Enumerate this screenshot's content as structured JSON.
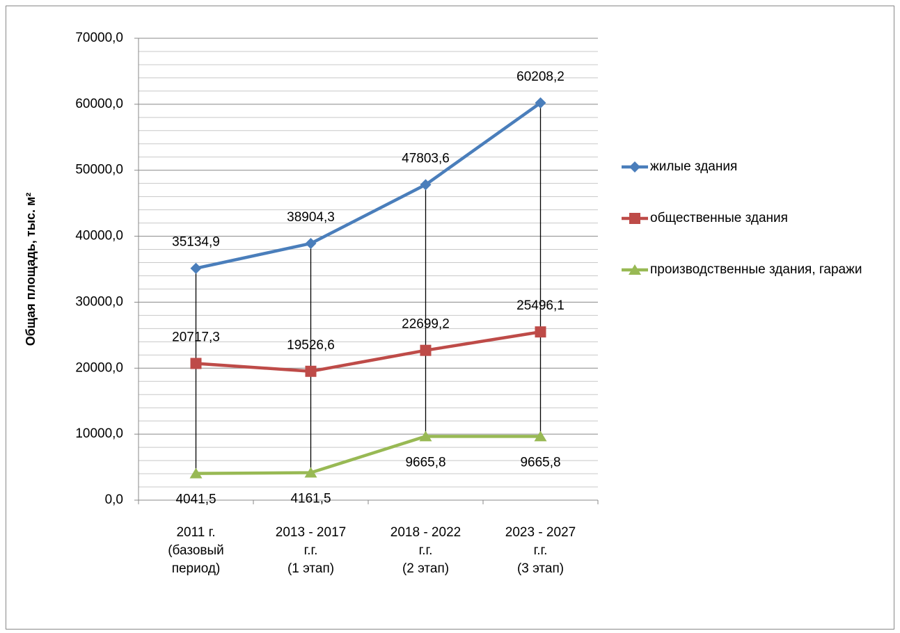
{
  "chart_data": {
    "type": "line",
    "y_label": "Общая площадь, тыс. м²",
    "categories": [
      "2011 г.\n(базовый\nпериод)",
      "2013 - 2017\nг.г.\n(1 этап)",
      "2018 - 2022\nг.г.\n(2 этап)",
      "2023 - 2027\nг.г.\n(3 этап)"
    ],
    "series": [
      {
        "name": "жилые здания",
        "color": "#4a7ebb",
        "marker": "diamond",
        "label_side": "above",
        "values": [
          35134.9,
          38904.3,
          47803.6,
          60208.2
        ],
        "value_labels": [
          "35134,9",
          "38904,3",
          "47803,6",
          "60208,2"
        ]
      },
      {
        "name": "общественные здания",
        "color": "#be4b48",
        "marker": "square",
        "label_side": "above",
        "values": [
          20717.3,
          19526.6,
          22699.2,
          25496.1
        ],
        "value_labels": [
          "20717,3",
          "19526,6",
          "22699,2",
          "25496,1"
        ]
      },
      {
        "name": "производственные здания, гаражи",
        "color": "#98b954",
        "marker": "triangle",
        "label_side": "below",
        "values": [
          4041.5,
          4161.5,
          9665.8,
          9665.8
        ],
        "value_labels": [
          "4041,5",
          "4161,5",
          "9665,8",
          "9665,8"
        ]
      }
    ],
    "ylim": [
      0,
      70000
    ],
    "yticks": [
      {
        "value": 0,
        "label": "0,0"
      },
      {
        "value": 10000,
        "label": "10000,0"
      },
      {
        "value": 20000,
        "label": "20000,0"
      },
      {
        "value": 30000,
        "label": "30000,0"
      },
      {
        "value": 40000,
        "label": "40000,0"
      },
      {
        "value": 50000,
        "label": "50000,0"
      },
      {
        "value": 60000,
        "label": "60000,0"
      },
      {
        "value": 70000,
        "label": "70000,0"
      }
    ],
    "yminorticks": [
      2000,
      4000,
      6000,
      8000,
      12000,
      14000,
      16000,
      18000,
      22000,
      24000,
      26000,
      28000,
      32000,
      34000,
      36000,
      38000,
      42000,
      44000,
      46000,
      48000,
      52000,
      54000,
      56000,
      58000,
      62000,
      64000,
      66000,
      68000
    ],
    "grid": true,
    "drop_lines": true,
    "legend": "right"
  }
}
